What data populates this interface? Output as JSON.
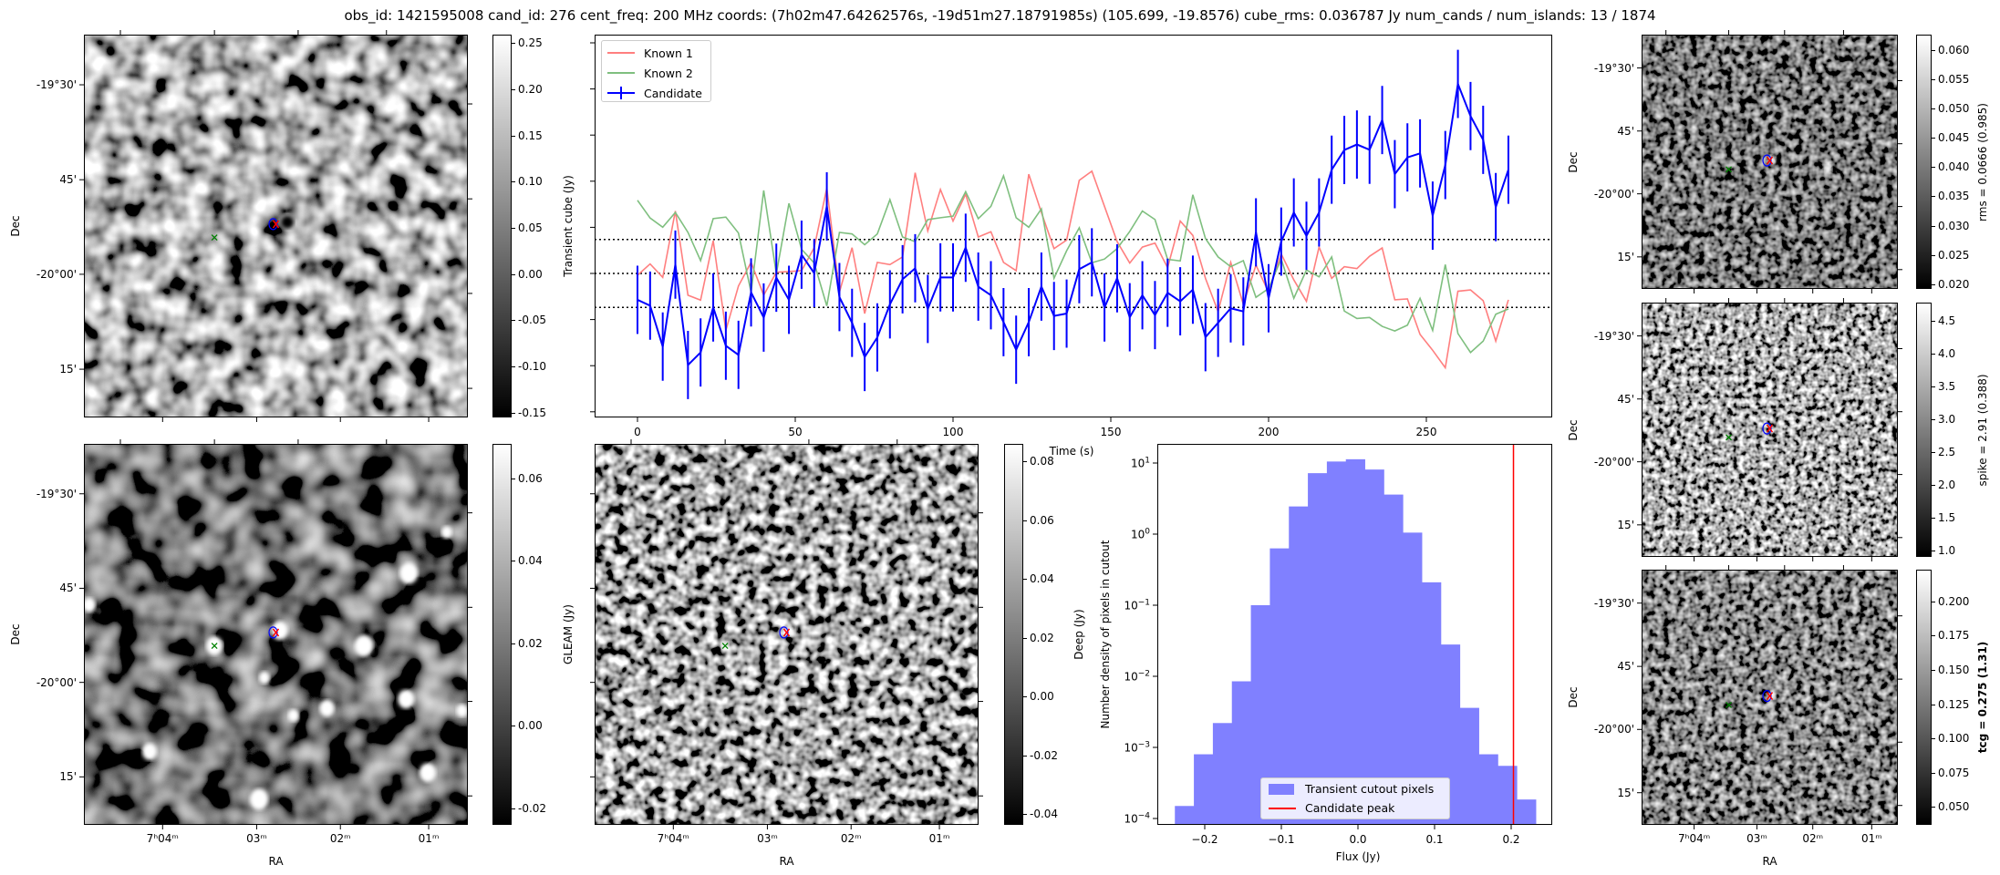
{
  "title": "obs_id: 1421595008 cand_id: 276 cent_freq: 200 MHz coords: (7h02m47.64262576s, -19d51m27.18791985s) (105.699, -19.8576) cube_rms: 0.036787 Jy num_cands / num_islands: 13 / 1874",
  "colors": {
    "known1": "#ff7f7f",
    "known2": "#7fbf7f",
    "candidate": "#0000ff",
    "hist": "#8080ff",
    "peak": "#ff0000",
    "source_marker": "#008000"
  },
  "axes": {
    "dec_label": "Dec",
    "ra_label": "RA",
    "dec_ticks": [
      "-19°30'",
      "45'",
      "-20°00'",
      "15'"
    ],
    "ra_ticks": [
      "7ʰ04ᵐ",
      "03ᵐ",
      "02ᵐ",
      "01ᵐ"
    ]
  },
  "images": {
    "transient": {
      "colorbar_ticks": [
        "0.25",
        "0.20",
        "0.15",
        "0.10",
        "0.05",
        "0.00",
        "-0.05",
        "-0.10",
        "-0.15"
      ],
      "tick_values": [
        0.25,
        0.2,
        0.15,
        0.1,
        0.05,
        0,
        -0.05,
        -0.1,
        -0.15
      ],
      "range": [
        -0.155,
        0.259
      ],
      "colorbar_label": ""
    },
    "gleam": {
      "colorbar_ticks": [
        "0.06",
        "0.04",
        "0.02",
        "0.00",
        "-0.02"
      ],
      "tick_values": [
        0.06,
        0.04,
        0.02,
        0,
        -0.02
      ],
      "range": [
        -0.024,
        0.0684
      ],
      "colorbar_label": "GLEAM (Jy)"
    },
    "deep": {
      "colorbar_ticks": [
        "0.08",
        "0.06",
        "0.04",
        "0.02",
        "0.00",
        "-0.02",
        "-0.04"
      ],
      "tick_values": [
        0.08,
        0.06,
        0.04,
        0.02,
        0,
        -0.02,
        -0.04
      ],
      "range": [
        -0.0437,
        0.0859
      ],
      "colorbar_label": "Deep (Jy)"
    },
    "rms": {
      "colorbar_ticks": [
        "0.060",
        "0.055",
        "0.050",
        "0.045",
        "0.040",
        "0.035",
        "0.030",
        "0.025",
        "0.020"
      ],
      "tick_values": [
        0.06,
        0.055,
        0.05,
        0.045,
        0.04,
        0.035,
        0.03,
        0.025,
        0.02
      ],
      "range": [
        0.0192,
        0.0626
      ],
      "colorbar_label": "rms = 0.0666 (0.985)"
    },
    "spike": {
      "colorbar_ticks": [
        "4.5",
        "4.0",
        "3.5",
        "3.0",
        "2.5",
        "2.0",
        "1.5",
        "1.0"
      ],
      "tick_values": [
        4.5,
        4,
        3.5,
        3,
        2.5,
        2,
        1.5,
        1
      ],
      "range": [
        0.9,
        4.78
      ],
      "colorbar_label": "spike = 2.91 (0.388)"
    },
    "tcg": {
      "colorbar_ticks": [
        "0.200",
        "0.175",
        "0.150",
        "0.125",
        "0.100",
        "0.075",
        "0.050"
      ],
      "tick_values": [
        0.2,
        0.175,
        0.15,
        0.125,
        0.1,
        0.075,
        0.05
      ],
      "range": [
        0.0367,
        0.2233
      ],
      "colorbar_label": "tcg = 0.275 (1.31)"
    }
  },
  "chart_data": [
    {
      "type": "line",
      "xlabel": "Time (s)",
      "ylabel": "Transient cube (Jy)",
      "xlim": [
        -13,
        290
      ],
      "ylim": [
        -0.156,
        0.259
      ],
      "xticks": [
        0,
        50,
        100,
        150,
        200,
        250
      ],
      "xtick_labels": [
        "0",
        "50",
        "100",
        "150",
        "200",
        "250"
      ],
      "yticks": [
        -0.15,
        -0.1,
        -0.05,
        0,
        0.05,
        0.1,
        0.15,
        0.2,
        0.25
      ],
      "hlines": [
        0.036787,
        0,
        -0.036787
      ],
      "legend": [
        "Known 1",
        "Known 2",
        "Candidate"
      ],
      "legend_position": "upper-left",
      "x_step": 4,
      "series": [
        {
          "name": "Known 1",
          "values": [
            -0.002,
            0.0103,
            -0.0043,
            0.0677,
            -0.0236,
            -0.0289,
            0.0355,
            -0.0618,
            -0.0136,
            0.012,
            -0.0236,
            0.0013,
            0.002,
            0.003,
            0.0279,
            0.0926,
            -0.0203,
            0.0279,
            -0.0435,
            0.012,
            0.0096,
            0.0179,
            0.1092,
            0.0461,
            0.091,
            0.0568,
            0.086,
            0.0395,
            0.0452,
            0.012,
            0.003,
            0.1076,
            0.0661,
            0.0269,
            0.0362,
            0.1009,
            0.1109,
            0.0727,
            0.0345,
            0.0113,
            0.0286,
            0.0329,
            0.0063,
            0.0568,
            0.0412,
            -0.0053,
            -0.0414,
            0.012,
            -0.0335,
            0.009,
            -0.0203,
            0.0212,
            -0.007,
            -0.0302,
            0.0286,
            -0.0053,
            0.0073,
            0.0053,
            0.0186,
            0.0276,
            -0.0286,
            -0.0276,
            -0.0661,
            -0.0833,
            -0.1023,
            -0.0193,
            -0.0179,
            -0.0295,
            -0.0734,
            -0.0286
          ]
        },
        {
          "name": "Known 2",
          "values": [
            0.0793,
            0.0601,
            0.0501,
            0.0661,
            0.0445,
            0.0139,
            0.0594,
            0.0611,
            0.0438,
            -0.0203,
            0.09,
            -0.0003,
            0.076,
            0.0262,
            0.0113,
            -0.0352,
            0.0445,
            0.0428,
            0.0312,
            0.0428,
            0.08,
            0.0395,
            0.0345,
            0.0584,
            0.0604,
            0.0621,
            0.0886,
            0.0594,
            0.0727,
            0.1059,
            0.0604,
            0.0501,
            0.07,
            -0.0053,
            0.0246,
            0.0495,
            0.0116,
            0.0156,
            0.0269,
            0.0455,
            0.0677,
            0.0584,
            0.0153,
            0.0136,
            0.0853,
            0.0378,
            0.0179,
            0.0073,
            0.0139,
            -0.0259,
            -0.0163,
            0.0156,
            -0.0269,
            0.0037,
            -0.0037,
            0.0179,
            -0.0408,
            -0.0488,
            -0.0478,
            -0.0574,
            -0.0624,
            -0.0561,
            -0.0269,
            -0.0618,
            0.0096,
            -0.0651,
            -0.0857,
            -0.0734,
            -0.0442,
            -0.0385
          ]
        },
        {
          "name": "Candidate",
          "errors": 0.037,
          "values": [
            -0.0286,
            -0.0349,
            -0.0793,
            0.0096,
            -0.0993,
            -0.0857,
            -0.0369,
            -0.0784,
            -0.0883,
            -0.0206,
            -0.0478,
            -0.0046,
            -0.0286,
            0.0203,
            0.0003,
            0.0727,
            -0.0256,
            -0.0535,
            -0.0906,
            -0.0694,
            -0.0335,
            -0.0063,
            0.0056,
            -0.0385,
            -0.0043,
            -0.0043,
            0.0279,
            -0.0143,
            -0.0236,
            -0.0528,
            -0.0827,
            -0.0528,
            -0.0143,
            -0.0461,
            -0.0435,
            0.0046,
            0.012,
            -0.0369,
            -0.0053,
            -0.0475,
            -0.0236,
            -0.0452,
            -0.0209,
            -0.0302,
            -0.0176,
            -0.0691,
            -0.0535,
            -0.0378,
            -0.0412,
            0.0445,
            -0.0269,
            0.0345,
            0.0661,
            0.0408,
            0.0661,
            0.1125,
            0.1338,
            0.1398,
            0.1341,
            0.1663,
            0.1076,
            0.1258,
            0.1301,
            0.0627,
            0.1175,
            0.2055,
            0.1706,
            0.1448,
            0.072,
            0.1125
          ]
        }
      ]
    },
    {
      "type": "bar",
      "subtype": "histogram",
      "xlabel": "Flux (Jy)",
      "ylabel": "Number density of pixels in cutout",
      "yscale": "log",
      "ylim": [
        8.2e-05,
        20
      ],
      "xlim": [
        -0.262,
        0.254
      ],
      "xticks": [
        -0.2,
        -0.1,
        0.0,
        0.1,
        0.2
      ],
      "xtick_labels": [
        "−0.2",
        "−0.1",
        "0.0",
        "0.1",
        "0.2"
      ],
      "yticks": [
        10,
        1,
        0.1,
        0.01,
        0.001,
        0.0001
      ],
      "ytick_base": [
        "10",
        "10",
        "10",
        "10",
        "10",
        "10"
      ],
      "ytick_exp": [
        "1",
        "0",
        "−1",
        "−2",
        "−3",
        "−4"
      ],
      "bin_start": -0.239,
      "bin_width": 0.0248,
      "values": [
        0.00015,
        0.0008,
        0.0022,
        0.0085,
        0.1,
        0.63,
        2.45,
        7.2,
        10.5,
        11.3,
        8.1,
        3.6,
        1.05,
        0.21,
        0.028,
        0.0036,
        0.0008,
        0.00055,
        0.000185
      ],
      "candidate_peak": 0.203,
      "legend": [
        "Transient cutout pixels",
        "Candidate peak"
      ],
      "legend_position": "lower-center"
    }
  ]
}
